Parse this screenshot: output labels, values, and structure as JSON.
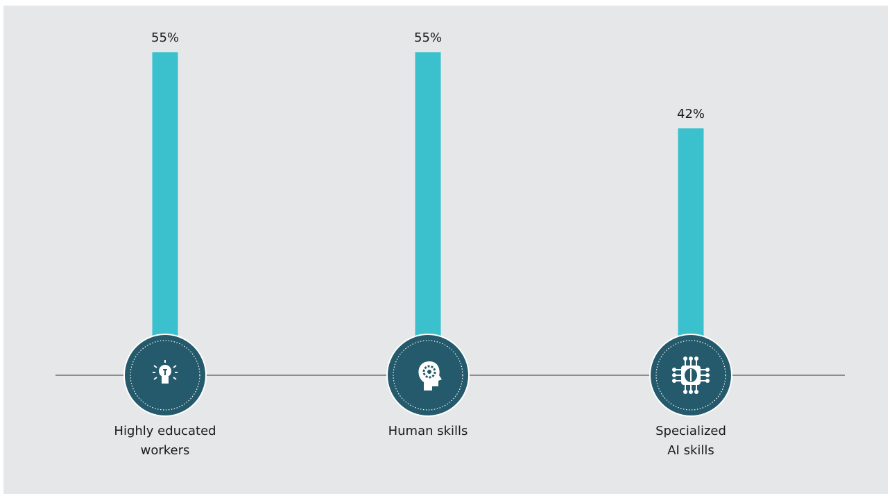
{
  "chart_data": {
    "type": "bar",
    "categories": [
      "Highly educated\nworkers",
      "Human skills",
      "Specialized\nAI skills"
    ],
    "values": [
      55,
      55,
      42
    ],
    "value_labels": [
      "55%",
      "55%",
      "42%"
    ],
    "color": "#3bc1ce"
  }
}
